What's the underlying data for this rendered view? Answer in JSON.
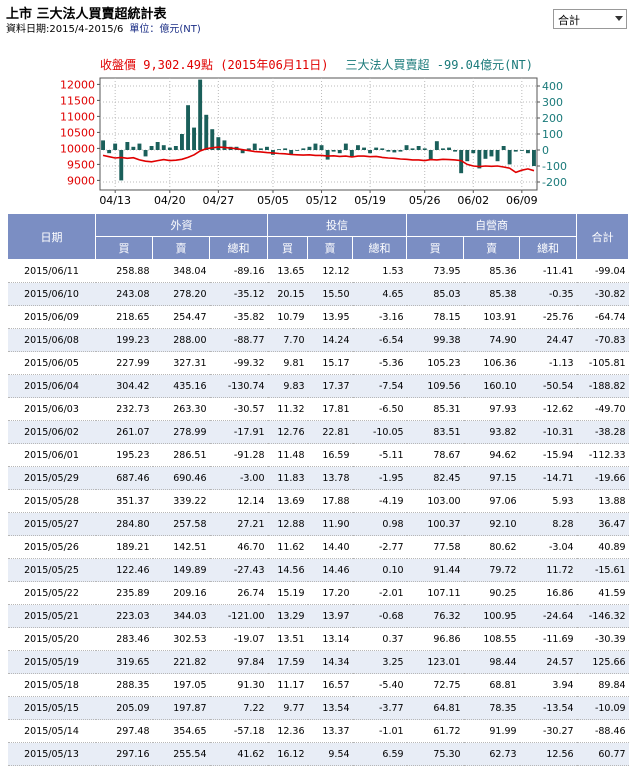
{
  "header": {
    "title": "上市 三大法人買賣超統計表",
    "date_range": "資料日期:2015/4-2015/6",
    "unit": "單位：億元(NT)"
  },
  "filter": {
    "selected": "合計"
  },
  "chart_data": {
    "type": "bar+line",
    "left_title": "收盤價 9,302.49點 (2015年06月11日)",
    "right_title": "三大法人買賣超 -99.04億元(NT)",
    "price_axis": {
      "ticks": [
        9000,
        9500,
        10000,
        10500,
        11000,
        11500,
        12000
      ],
      "range": [
        8700,
        12200
      ]
    },
    "flow_axis": {
      "ticks": [
        -200,
        -100,
        0,
        100,
        200,
        300,
        400
      ],
      "range": [
        -250,
        450
      ]
    },
    "x_tick_labels": [
      "04/13",
      "04/20",
      "04/27",
      "05/05",
      "05/12",
      "05/19",
      "05/26",
      "06/02",
      "06/09"
    ],
    "colors": {
      "bars": "#1a5f5a",
      "line": "#e00000",
      "left_title": "#e00000",
      "right_title": "#1a7a7a"
    },
    "bars": [
      60,
      -20,
      40,
      -190,
      50,
      20,
      40,
      -40,
      25,
      50,
      30,
      15,
      25,
      100,
      280,
      140,
      440,
      220,
      130,
      80,
      60,
      20,
      20,
      -20,
      10,
      40,
      10,
      20,
      -30,
      5,
      10,
      -30,
      -5,
      10,
      20,
      40,
      30,
      -60,
      -10,
      -20,
      40,
      -45,
      30,
      15,
      -20,
      15,
      10,
      -10,
      -15,
      -10,
      30,
      10,
      25,
      10,
      -60,
      55,
      10,
      15,
      -10,
      -145,
      -70,
      -20,
      -115,
      -55,
      -40,
      -70,
      25,
      -90,
      -10,
      -5,
      -20,
      -100
    ],
    "price": [
      9780,
      9740,
      9700,
      9720,
      9690,
      9710,
      9640,
      9600,
      9580,
      9620,
      9650,
      9620,
      9630,
      9660,
      9720,
      9800,
      9920,
      9990,
      10020,
      10040,
      10030,
      10010,
      9990,
      9960,
      9930,
      9900,
      9890,
      9870,
      9860,
      9840,
      9830,
      9810,
      9800,
      9790,
      9800,
      9780,
      9780,
      9760,
      9770,
      9750,
      9760,
      9730,
      9760,
      9760,
      9740,
      9750,
      9720,
      9700,
      9690,
      9670,
      9660,
      9640,
      9640,
      9620,
      9650,
      9640,
      9660,
      9650,
      9640,
      9620,
      9500,
      9450,
      9430,
      9450,
      9440,
      9450,
      9420,
      9380,
      9250,
      9320,
      9360,
      9302
    ]
  },
  "table": {
    "group_headers": [
      "日期",
      "外資",
      "投信",
      "自營商",
      "合計"
    ],
    "sub_headers": [
      "買",
      "賣",
      "總和",
      "買",
      "賣",
      "總和",
      "買",
      "賣",
      "總和"
    ],
    "rows": [
      [
        "2015/06/11",
        "258.88",
        "348.04",
        "-89.16",
        "13.65",
        "12.12",
        "1.53",
        "73.95",
        "85.36",
        "-11.41",
        "-99.04"
      ],
      [
        "2015/06/10",
        "243.08",
        "278.20",
        "-35.12",
        "20.15",
        "15.50",
        "4.65",
        "85.03",
        "85.38",
        "-0.35",
        "-30.82"
      ],
      [
        "2015/06/09",
        "218.65",
        "254.47",
        "-35.82",
        "10.79",
        "13.95",
        "-3.16",
        "78.15",
        "103.91",
        "-25.76",
        "-64.74"
      ],
      [
        "2015/06/08",
        "199.23",
        "288.00",
        "-88.77",
        "7.70",
        "14.24",
        "-6.54",
        "99.38",
        "74.90",
        "24.47",
        "-70.83"
      ],
      [
        "2015/06/05",
        "227.99",
        "327.31",
        "-99.32",
        "9.81",
        "15.17",
        "-5.36",
        "105.23",
        "106.36",
        "-1.13",
        "-105.81"
      ],
      [
        "2015/06/04",
        "304.42",
        "435.16",
        "-130.74",
        "9.83",
        "17.37",
        "-7.54",
        "109.56",
        "160.10",
        "-50.54",
        "-188.82"
      ],
      [
        "2015/06/03",
        "232.73",
        "263.30",
        "-30.57",
        "11.32",
        "17.81",
        "-6.50",
        "85.31",
        "97.93",
        "-12.62",
        "-49.70"
      ],
      [
        "2015/06/02",
        "261.07",
        "278.99",
        "-17.91",
        "12.76",
        "22.81",
        "-10.05",
        "83.51",
        "93.82",
        "-10.31",
        "-38.28"
      ],
      [
        "2015/06/01",
        "195.23",
        "286.51",
        "-91.28",
        "11.48",
        "16.59",
        "-5.11",
        "78.67",
        "94.62",
        "-15.94",
        "-112.33"
      ],
      [
        "2015/05/29",
        "687.46",
        "690.46",
        "-3.00",
        "11.83",
        "13.78",
        "-1.95",
        "82.45",
        "97.15",
        "-14.71",
        "-19.66"
      ],
      [
        "2015/05/28",
        "351.37",
        "339.22",
        "12.14",
        "13.69",
        "17.88",
        "-4.19",
        "103.00",
        "97.06",
        "5.93",
        "13.88"
      ],
      [
        "2015/05/27",
        "284.80",
        "257.58",
        "27.21",
        "12.88",
        "11.90",
        "0.98",
        "100.37",
        "92.10",
        "8.28",
        "36.47"
      ],
      [
        "2015/05/26",
        "189.21",
        "142.51",
        "46.70",
        "11.62",
        "14.40",
        "-2.77",
        "77.58",
        "80.62",
        "-3.04",
        "40.89"
      ],
      [
        "2015/05/25",
        "122.46",
        "149.89",
        "-27.43",
        "14.56",
        "14.46",
        "0.10",
        "91.44",
        "79.72",
        "11.72",
        "-15.61"
      ],
      [
        "2015/05/22",
        "235.89",
        "209.16",
        "26.74",
        "15.19",
        "17.20",
        "-2.01",
        "107.11",
        "90.25",
        "16.86",
        "41.59"
      ],
      [
        "2015/05/21",
        "223.03",
        "344.03",
        "-121.00",
        "13.29",
        "13.97",
        "-0.68",
        "76.32",
        "100.95",
        "-24.64",
        "-146.32"
      ],
      [
        "2015/05/20",
        "283.46",
        "302.53",
        "-19.07",
        "13.51",
        "13.14",
        "0.37",
        "96.86",
        "108.55",
        "-11.69",
        "-30.39"
      ],
      [
        "2015/05/19",
        "319.65",
        "221.82",
        "97.84",
        "17.59",
        "14.34",
        "3.25",
        "123.01",
        "98.44",
        "24.57",
        "125.66"
      ],
      [
        "2015/05/18",
        "288.35",
        "197.05",
        "91.30",
        "11.17",
        "16.57",
        "-5.40",
        "72.75",
        "68.81",
        "3.94",
        "89.84"
      ],
      [
        "2015/05/15",
        "205.09",
        "197.87",
        "7.22",
        "9.77",
        "13.54",
        "-3.77",
        "64.81",
        "78.35",
        "-13.54",
        "-10.09"
      ],
      [
        "2015/05/14",
        "297.48",
        "354.65",
        "-57.18",
        "12.36",
        "13.37",
        "-1.01",
        "61.72",
        "91.99",
        "-30.27",
        "-88.46"
      ],
      [
        "2015/05/13",
        "297.16",
        "255.54",
        "41.62",
        "16.12",
        "9.54",
        "6.59",
        "75.30",
        "62.73",
        "12.56",
        "60.77"
      ]
    ]
  }
}
